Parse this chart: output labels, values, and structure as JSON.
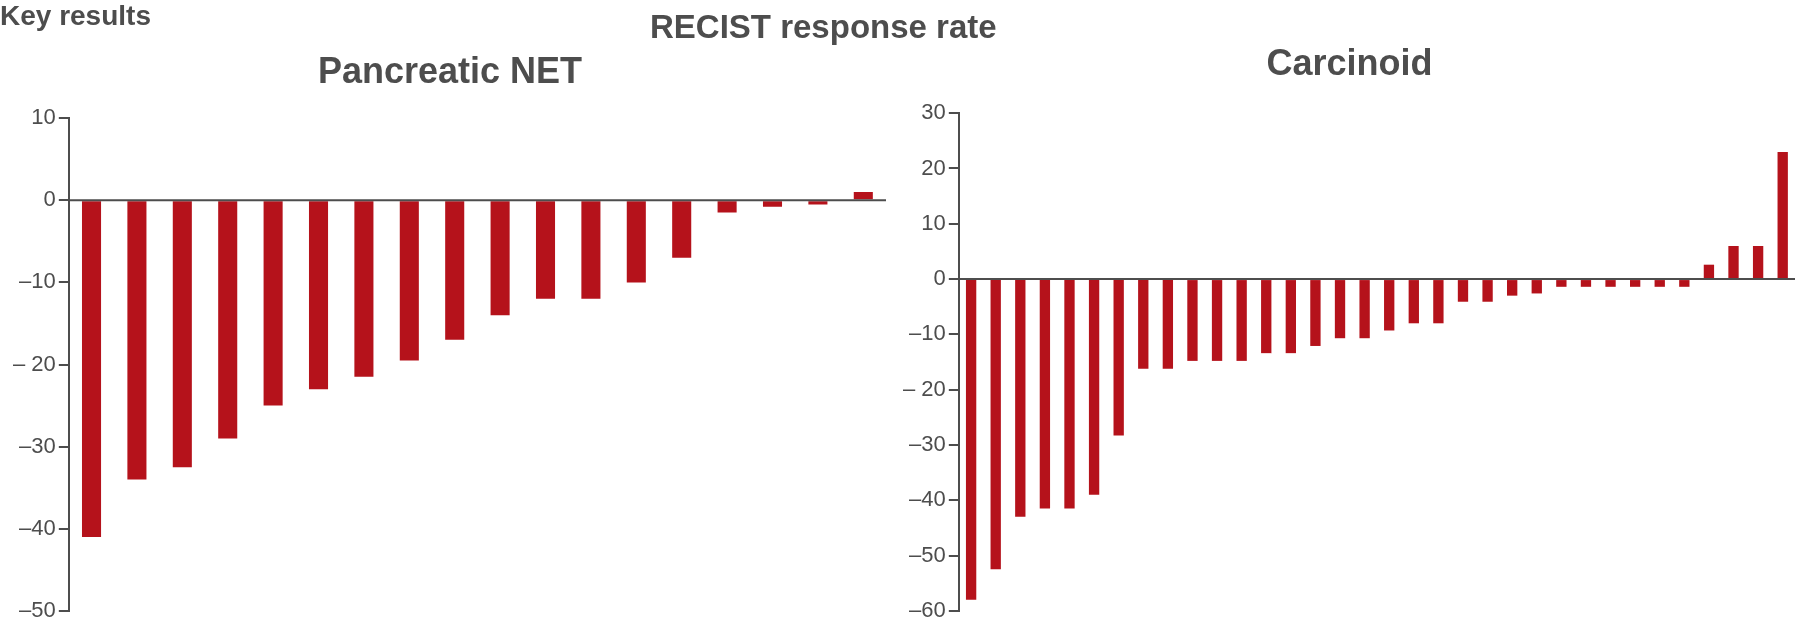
{
  "chart_data": [
    {
      "type": "bar",
      "title": "Pancreatic NET",
      "annotations": [
        "Key results",
        "RECIST response rate"
      ],
      "tick_labels": "y",
      "legend": false,
      "categories": [
        null,
        null,
        null,
        null,
        null,
        null,
        null,
        null,
        null,
        null,
        null,
        null,
        null,
        null,
        null,
        null,
        null,
        null
      ],
      "series": [
        {
          "color": "#b5121b",
          "values": [
            -41,
            -34,
            -32.5,
            -29,
            -25,
            -23,
            -21.5,
            -19.5,
            -17,
            -14,
            -12,
            -12,
            -10,
            -7,
            -1.5,
            -0.8,
            -0.5,
            1
          ]
        }
      ],
      "ylim": [
        -50,
        10
      ],
      "yticks": [
        {
          "value": -50,
          "label": "–50"
        },
        {
          "value": -40,
          "label": "–40"
        },
        {
          "value": -30,
          "label": "–30"
        },
        {
          "value": -20,
          "label": "– 20"
        },
        {
          "value": -10,
          "label": "–10"
        },
        0,
        10
      ]
    },
    {
      "type": "bar",
      "title": "Carcinoid",
      "tick_labels": "y",
      "legend": false,
      "categories": [
        null,
        null,
        null,
        null,
        null,
        null,
        null,
        null,
        null,
        null,
        null,
        null,
        null,
        null,
        null,
        null,
        null,
        null,
        null,
        null,
        null,
        null,
        null,
        null,
        null,
        null,
        null,
        null,
        null,
        null,
        null,
        null,
        null,
        null
      ],
      "series": [
        {
          "color": "#b5121b",
          "values": [
            -58,
            -52.5,
            -43,
            -41.5,
            -41.5,
            -39,
            -28.3,
            -16.2,
            -16.2,
            -14.8,
            -14.8,
            -14.8,
            -13.4,
            -13.4,
            -12.1,
            -10.7,
            -10.7,
            -9.3,
            -8,
            -8,
            -4.1,
            -4.1,
            -3,
            -2.6,
            -1.4,
            -1.4,
            -1.4,
            -1.4,
            -1.4,
            -1.4,
            2.6,
            6,
            6,
            23
          ]
        }
      ],
      "ylim": [
        -60,
        30
      ],
      "yticks": [
        {
          "value": -60,
          "label": "–60"
        },
        {
          "value": -50,
          "label": "–50"
        },
        {
          "value": -40,
          "label": "–40"
        },
        {
          "value": -30,
          "label": "–30"
        },
        {
          "value": -20,
          "label": "– 20"
        },
        {
          "value": -10,
          "label": "–10"
        },
        0,
        10,
        20,
        30
      ]
    }
  ]
}
